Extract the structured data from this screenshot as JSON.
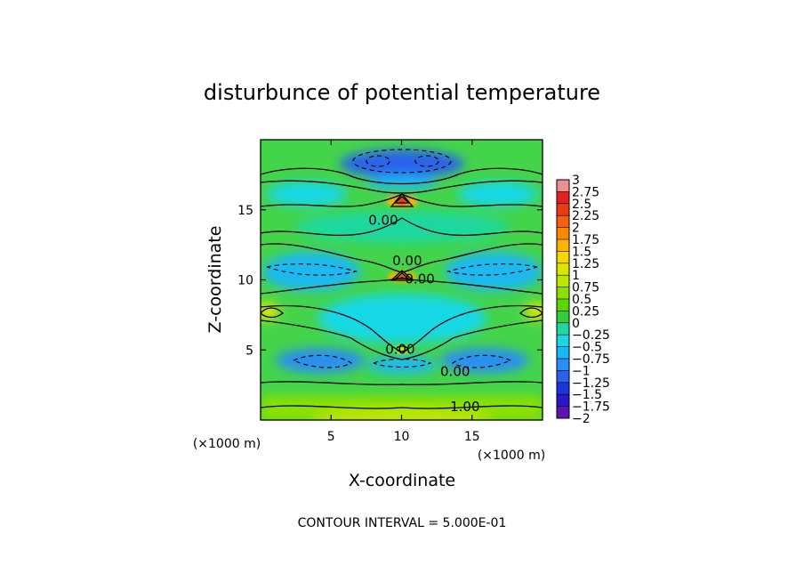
{
  "chart_data": {
    "type": "heatmap",
    "title": "disturbunce of potential temperature",
    "xlabel": "X-coordinate",
    "ylabel": "Z-coordinate",
    "x_unit_label": "(×1000 m)",
    "y_unit_label": "(×1000 m)",
    "xlim": [
      0,
      20
    ],
    "ylim": [
      0,
      20
    ],
    "xticks": [
      5,
      10,
      15
    ],
    "yticks": [
      5,
      10,
      15
    ],
    "footer": "CONTOUR INTERVAL = 5.000E-01",
    "contour_interval": 0.5,
    "contour_labels": [
      {
        "text": "0.00",
        "x": 8.7,
        "z": 14.0
      },
      {
        "text": "0.00",
        "x": 10.4,
        "z": 11.1
      },
      {
        "text": "0.00",
        "x": 11.3,
        "z": 9.8
      },
      {
        "text": "0.00",
        "x": 9.9,
        "z": 4.8
      },
      {
        "text": "0.00",
        "x": 13.8,
        "z": 3.2
      },
      {
        "text": "1.00",
        "x": 14.5,
        "z": 0.7
      }
    ],
    "colorbar": {
      "levels": [
        "3",
        "2.75",
        "2.5",
        "2.25",
        "2",
        "1.75",
        "1.5",
        "1.25",
        "1",
        "0.75",
        "0.5",
        "0.25",
        "0",
        "−0.25",
        "−0.5",
        "−0.75",
        "−1",
        "−1.25",
        "−1.5",
        "−1.75",
        "−2"
      ],
      "colors": [
        "#ef9090",
        "#e22222",
        "#ea3c10",
        "#f26010",
        "#f78a00",
        "#f8b400",
        "#f6d800",
        "#dde600",
        "#bde600",
        "#8ae000",
        "#5cd800",
        "#34ce3a",
        "#1ed8a0",
        "#18d8e6",
        "#1ab8f2",
        "#2a8ef4",
        "#2a62ec",
        "#1c34d8",
        "#2a18c8",
        "#5a14b4"
      ]
    },
    "fields": [
      {
        "label": "upper negative anomalies",
        "x": 10.0,
        "z": 18.5,
        "value": -1.25
      },
      {
        "label": "top-center maximum",
        "x": 10.0,
        "z": 15.6,
        "value": 2.5
      },
      {
        "label": "mid-center maximum",
        "x": 10.0,
        "z": 10.3,
        "value": 2.0
      },
      {
        "label": "lower negative anomalies",
        "x": 10.0,
        "z": 4.0,
        "value": -1.0
      },
      {
        "label": "surface positive layer",
        "x": 10.0,
        "z": 0.8,
        "value": 1.0
      }
    ]
  }
}
